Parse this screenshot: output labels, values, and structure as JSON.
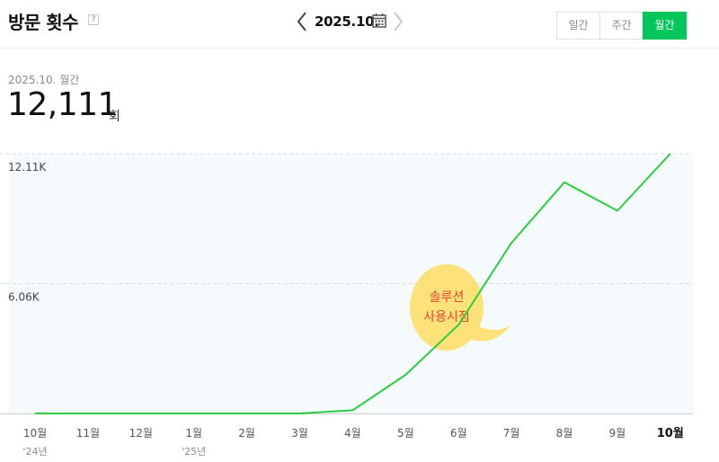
{
  "header": {
    "title": "방문 횟수",
    "help_label": "?",
    "period": "2025.10.",
    "tabs": [
      {
        "label": "일간",
        "active": false
      },
      {
        "label": "주간",
        "active": false
      },
      {
        "label": "월간",
        "active": true
      }
    ]
  },
  "summary": {
    "period_label": "2025.10. 월간",
    "value": "12,111",
    "unit": "회"
  },
  "annotation": {
    "line1": "솔루션",
    "line2": "사용시점"
  },
  "colors": {
    "accent": "#03c75a",
    "line": "#2ecc40",
    "plot_bg": "#f5fafd",
    "bubble": "#fde27a",
    "annotation_text": "#e8432c"
  },
  "chart_data": {
    "type": "line",
    "categories": [
      "10월",
      "11월",
      "12월",
      "1월",
      "2월",
      "3월",
      "4월",
      "5월",
      "6월",
      "7월",
      "8월",
      "9월",
      "10월"
    ],
    "year_labels": [
      "'24년",
      "",
      "",
      "'25년",
      "",
      "",
      "",
      "",
      "",
      "",
      "",
      "",
      ""
    ],
    "values": [
      0,
      0,
      0,
      0,
      0,
      0,
      150,
      1800,
      4130,
      7960,
      10780,
      9450,
      12111
    ],
    "ytick_labels": [
      "6.06K",
      "12.11K"
    ],
    "ytick_values": [
      6055,
      12111
    ],
    "ylim": [
      0,
      12111
    ],
    "highlight_index": 12,
    "grid": true
  }
}
